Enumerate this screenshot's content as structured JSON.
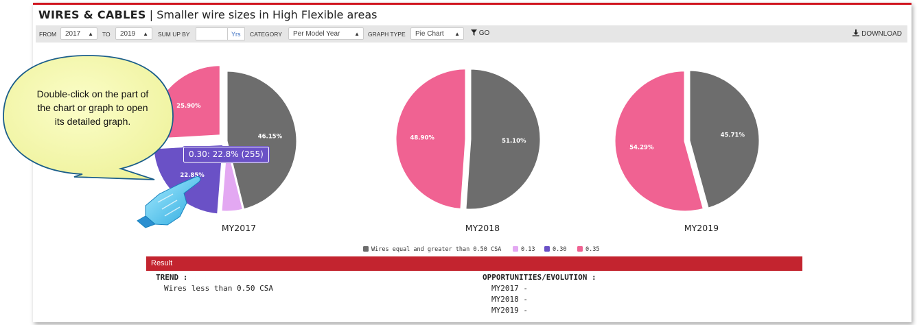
{
  "header": {
    "title_bold": "WIRES & CABLES",
    "separator": "|",
    "subtitle": "Smaller wire sizes in High Flexible areas"
  },
  "toolbar": {
    "from_label": "FROM",
    "from_value": "2017",
    "to_label": "TO",
    "to_value": "2019",
    "sumup_label": "SUM UP BY",
    "sumup_value": "",
    "sumup_unit": "Yrs",
    "category_label": "CATEGORY",
    "category_value": "Per Model Year",
    "graph_type_label": "GRAPH TYPE",
    "graph_type_value": "Pie Chart",
    "go_label": "GO",
    "download_label": "DOWNLOAD"
  },
  "chart_data": [
    {
      "type": "pie",
      "title": "MY2017",
      "slices": [
        {
          "label": "Wires equal and greater than 0.50 CSA",
          "value": 46.15,
          "color": "#6d6d6d",
          "text": "46.15%"
        },
        {
          "label": "0.13",
          "value": 5.1,
          "color": "#e3a8f2",
          "text": ""
        },
        {
          "label": "0.30",
          "value": 22.85,
          "color": "#6a51c6",
          "text": "22.85%"
        },
        {
          "label": "0.35",
          "value": 25.9,
          "color": "#f06292",
          "text": "25.90%"
        }
      ]
    },
    {
      "type": "pie",
      "title": "MY2018",
      "slices": [
        {
          "label": "Wires equal and greater than 0.50 CSA",
          "value": 51.1,
          "color": "#6d6d6d",
          "text": "51.10%"
        },
        {
          "label": "0.35",
          "value": 48.9,
          "color": "#f06292",
          "text": "48.90%"
        }
      ]
    },
    {
      "type": "pie",
      "title": "MY2019",
      "slices": [
        {
          "label": "Wires equal and greater than 0.50 CSA",
          "value": 45.71,
          "color": "#6d6d6d",
          "text": "45.71%"
        },
        {
          "label": "0.35",
          "value": 54.29,
          "color": "#f06292",
          "text": "54.29%"
        }
      ]
    }
  ],
  "legend": [
    {
      "label": "Wires equal and greater than 0.50 CSA",
      "color": "#6d6d6d"
    },
    {
      "label": "0.13",
      "color": "#e3a8f2"
    },
    {
      "label": "0.30",
      "color": "#6a51c6"
    },
    {
      "label": "0.35",
      "color": "#f06292"
    }
  ],
  "tooltip": {
    "text": "0.30: 22.8% (255)"
  },
  "callout": {
    "text": "Double-click on the part of the chart or graph to open its detailed graph."
  },
  "result": {
    "header": "Result",
    "trend_label": "TREND :",
    "trend_value": "Wires less than 0.50 CSA",
    "opportunities_label": "OPPORTUNITIES/EVOLUTION :",
    "years": [
      "MY2017 -",
      "MY2018 -",
      "MY2019 -"
    ]
  }
}
